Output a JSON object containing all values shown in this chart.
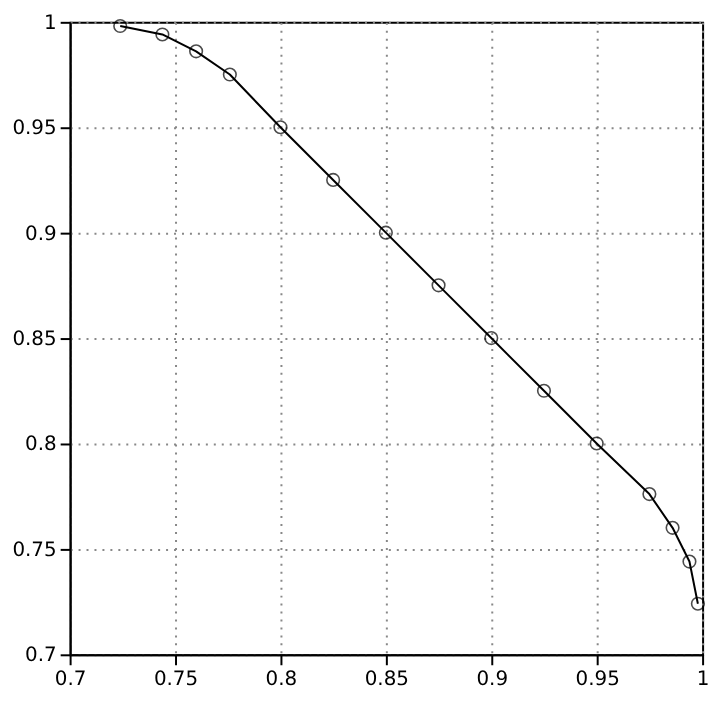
{
  "chart_data": {
    "type": "line",
    "x": [
      0.724,
      0.744,
      0.76,
      0.776,
      0.8,
      0.825,
      0.85,
      0.875,
      0.9,
      0.925,
      0.95,
      0.975,
      0.986,
      0.994,
      0.998
    ],
    "series": [
      {
        "color": "#000000",
        "values": [
          0.998,
          0.994,
          0.986,
          0.975,
          0.95,
          0.925,
          0.9,
          0.875,
          0.85,
          0.825,
          0.8,
          0.776,
          0.76,
          0.744,
          0.724
        ]
      }
    ],
    "xlim": [
      0.7,
      1
    ],
    "ylim": [
      0.7,
      1
    ],
    "xticks": [
      0.7,
      0.75,
      0.8,
      0.85,
      0.9,
      0.95,
      1
    ],
    "yticks": [
      0.7,
      0.75,
      0.8,
      0.85,
      0.9,
      0.95,
      1
    ],
    "grid": true,
    "marker": "circle",
    "line_style": "solid"
  }
}
